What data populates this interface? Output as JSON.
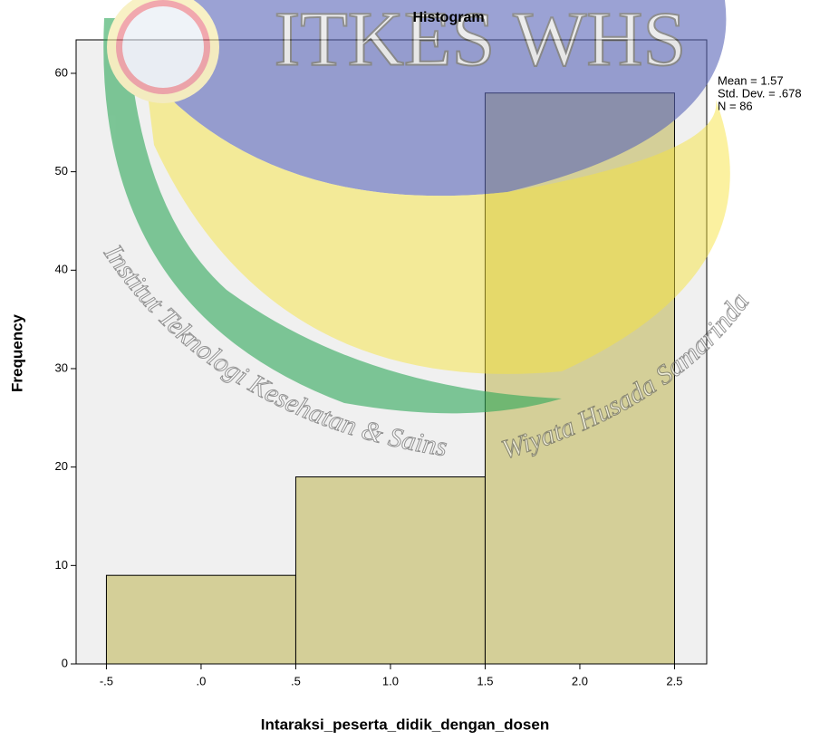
{
  "chart_data": {
    "type": "histogram",
    "title": "Histogram",
    "x_label": "Intaraksi_peserta_didik_dengan_dosen",
    "y_label": "Frequency",
    "bins": [
      -0.5,
      0.5,
      1.5,
      2.5
    ],
    "counts": [
      9,
      19,
      58
    ],
    "color": "#d4cf98",
    "xlim": [
      -0.66,
      2.67
    ],
    "ylim": [
      0,
      63.4
    ],
    "xticks": [
      {
        "value": -0.5,
        "label": "-.5"
      },
      {
        "value": 0,
        "label": ".0"
      },
      {
        "value": 0.5,
        "label": ".5"
      },
      {
        "value": 1,
        "label": "1.0"
      },
      {
        "value": 1.5,
        "label": "1.5"
      },
      {
        "value": 2,
        "label": "2.0"
      },
      {
        "value": 2.5,
        "label": "2.5"
      }
    ],
    "yticks": [
      0,
      10,
      20,
      30,
      40,
      50,
      60
    ],
    "annotations": [
      "Mean = 1.57",
      "Std. Dev. = .678",
      "N = 86"
    ]
  },
  "watermark": {
    "logo_text": "ITKES WHS",
    "arc_text_left": "Institut Teknologi Kesehatan & Sains",
    "arc_text_right": "Wiyata Husada Samarinda"
  }
}
